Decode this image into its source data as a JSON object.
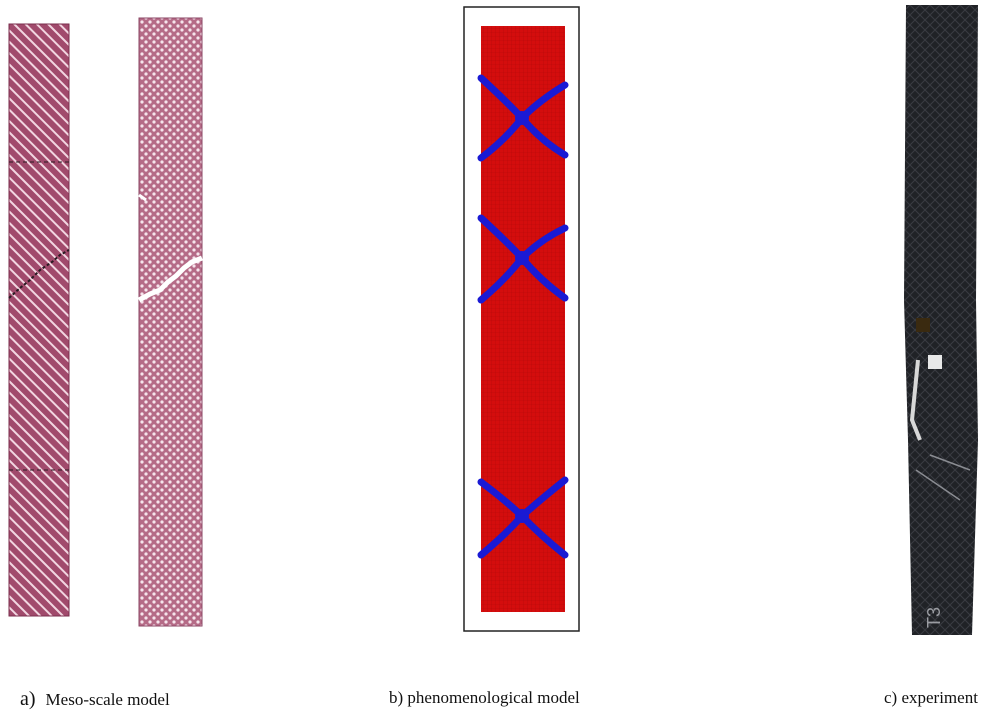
{
  "figure": {
    "panels": [
      {
        "id": "a",
        "letter": "a)",
        "caption": "Meso-scale model",
        "specimens": [
          "diagonal-weave",
          "damaged-weave"
        ]
      },
      {
        "id": "b",
        "letter": "b) phenomenological model",
        "caption": "",
        "band_crossings": 3
      },
      {
        "id": "c",
        "letter": "c) experiment",
        "caption": "",
        "specimen_mark": "T3"
      }
    ],
    "colors": {
      "meso_fill": "#a14a6c",
      "meso_light": "#e8b7c9",
      "pheno_fill": "#d40d0d",
      "pheno_damage": "#1a1ad4",
      "experiment_fill": "#202226"
    }
  }
}
